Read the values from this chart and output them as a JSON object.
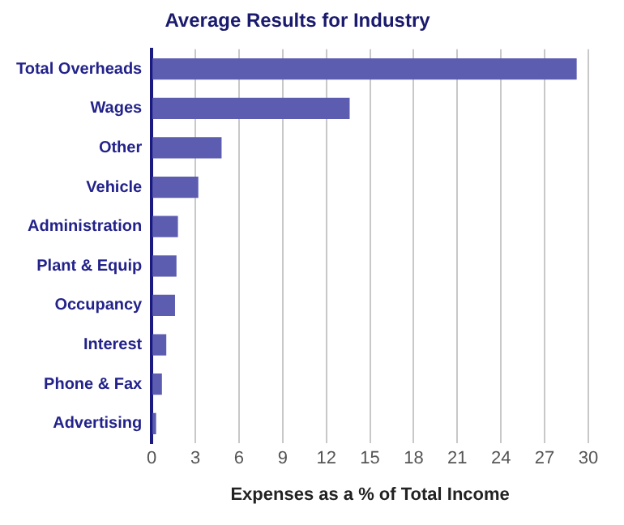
{
  "chart_data": {
    "type": "bar",
    "orientation": "horizontal",
    "title": "Average Results for Industry",
    "xlabel": "Expenses as a % of Total Income",
    "categories": [
      "Total Overheads",
      "Wages",
      "Other",
      "Vehicle",
      "Administration",
      "Plant & Equip",
      "Occupancy",
      "Interest",
      "Phone & Fax",
      "Advertising"
    ],
    "values": [
      29.2,
      13.6,
      4.8,
      3.2,
      1.8,
      1.7,
      1.6,
      1.0,
      0.7,
      0.3
    ],
    "color": "#5c5cb0",
    "xlim": [
      0,
      30
    ],
    "xticks": [
      0,
      3,
      6,
      9,
      12,
      15,
      18,
      21,
      24,
      27,
      30
    ],
    "grid": "x",
    "legend": false
  }
}
